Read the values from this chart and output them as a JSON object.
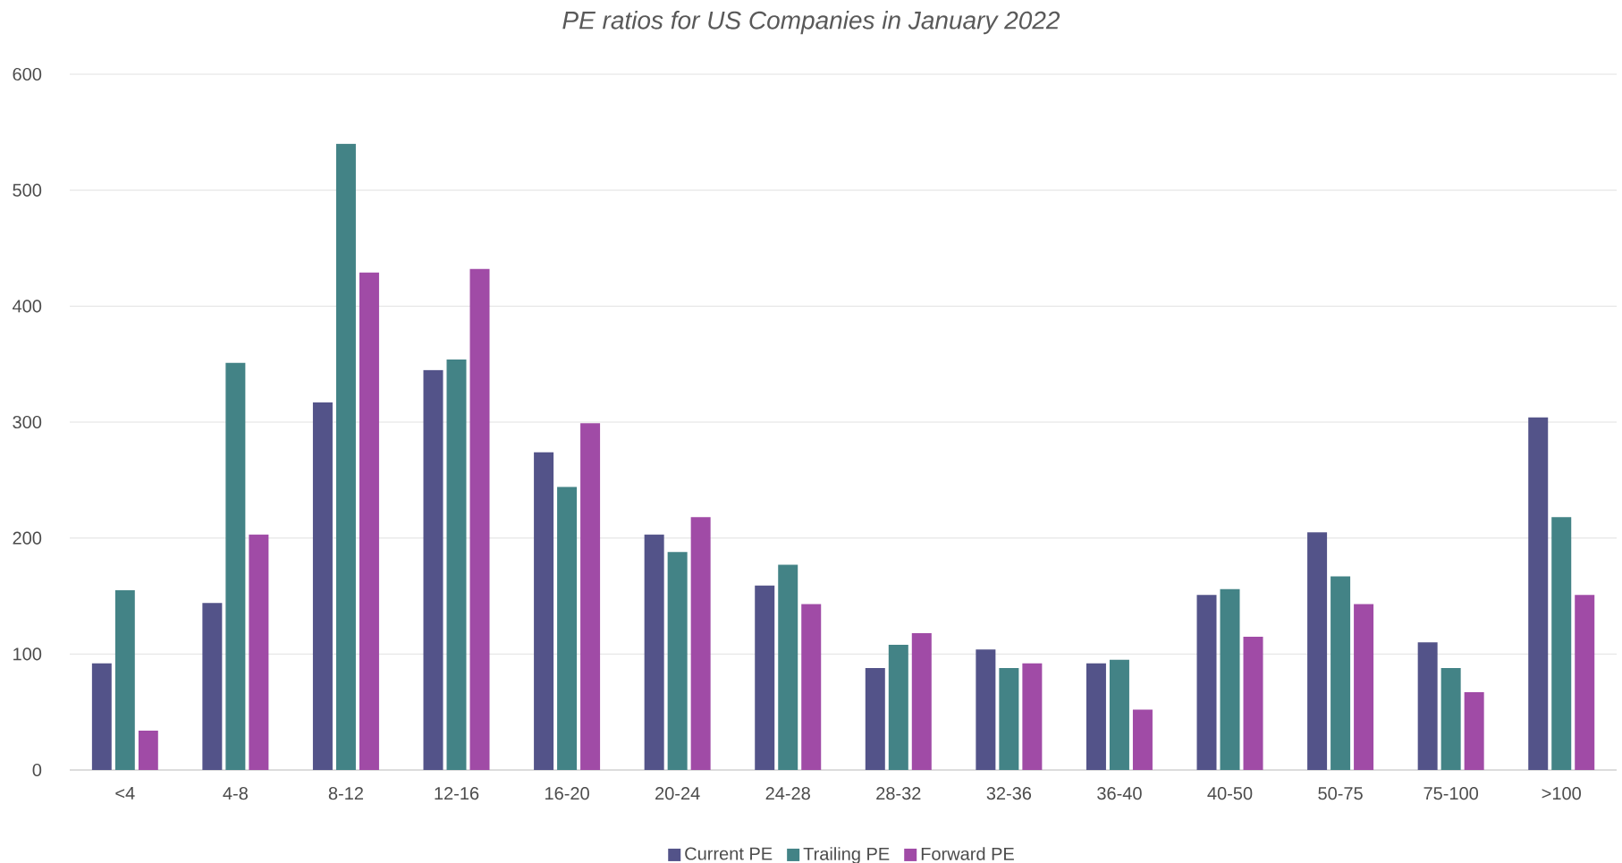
{
  "chart_data": {
    "type": "bar",
    "title": "PE ratios for US Companies in January 2022",
    "categories": [
      "<4",
      "4-8",
      "8-12",
      "12-16",
      "16-20",
      "20-24",
      "24-28",
      "28-32",
      "32-36",
      "36-40",
      "40-50",
      "50-75",
      "75-100",
      ">100"
    ],
    "series": [
      {
        "name": "Current PE",
        "color": "#535389",
        "values": [
          92,
          144,
          317,
          345,
          274,
          203,
          159,
          88,
          104,
          92,
          151,
          205,
          110,
          304
        ]
      },
      {
        "name": "Trailing PE",
        "color": "#438386",
        "values": [
          155,
          351,
          540,
          354,
          244,
          188,
          177,
          108,
          88,
          95,
          156,
          167,
          88,
          218
        ]
      },
      {
        "name": "Forward PE",
        "color": "#a04ba6",
        "values": [
          34,
          203,
          429,
          432,
          299,
          218,
          143,
          118,
          92,
          52,
          115,
          143,
          67,
          151
        ]
      }
    ],
    "ylim": [
      0,
      600
    ],
    "yticks": [
      0,
      100,
      200,
      300,
      400,
      500,
      600
    ],
    "grid": "y",
    "legend": "bottom"
  }
}
